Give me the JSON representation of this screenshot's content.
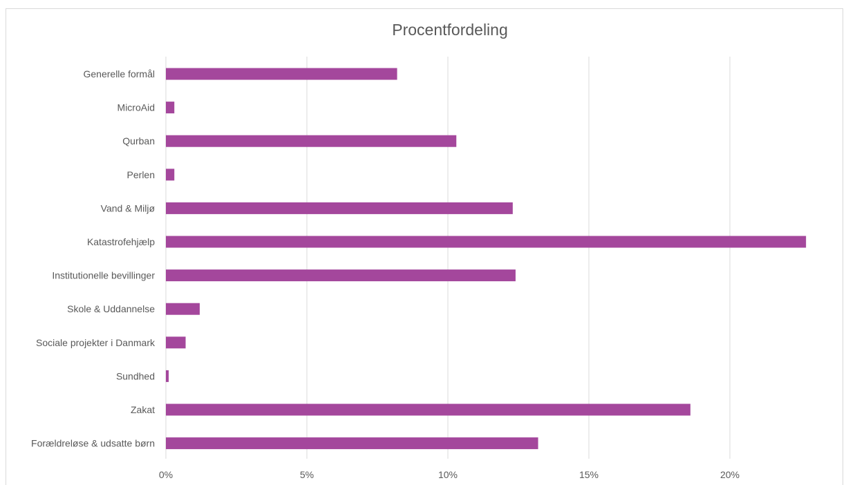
{
  "chart_data": {
    "type": "bar",
    "orientation": "horizontal",
    "title": "Procentfordeling",
    "xlabel": "",
    "ylabel": "",
    "xlim": [
      0,
      0.225
    ],
    "x_ticks": [
      0,
      0.05,
      0.1,
      0.15,
      0.2
    ],
    "x_tick_labels": [
      "0%",
      "5%",
      "10%",
      "15%",
      "20%"
    ],
    "grid": true,
    "legend": false,
    "bar_color": "#a4479c",
    "categories": [
      "Generelle formål",
      "MicroAid",
      "Qurban",
      "Perlen",
      "Vand & Miljø",
      "Katastrofehjælp",
      "Institutionelle bevillinger",
      "Skole & Uddannelse",
      "Sociale projekter i Danmark",
      "Sundhed",
      "Zakat",
      "Forældreløse & udsatte børn"
    ],
    "values": [
      0.082,
      0.003,
      0.103,
      0.003,
      0.123,
      0.227,
      0.124,
      0.012,
      0.007,
      0.001,
      0.186,
      0.132
    ]
  }
}
